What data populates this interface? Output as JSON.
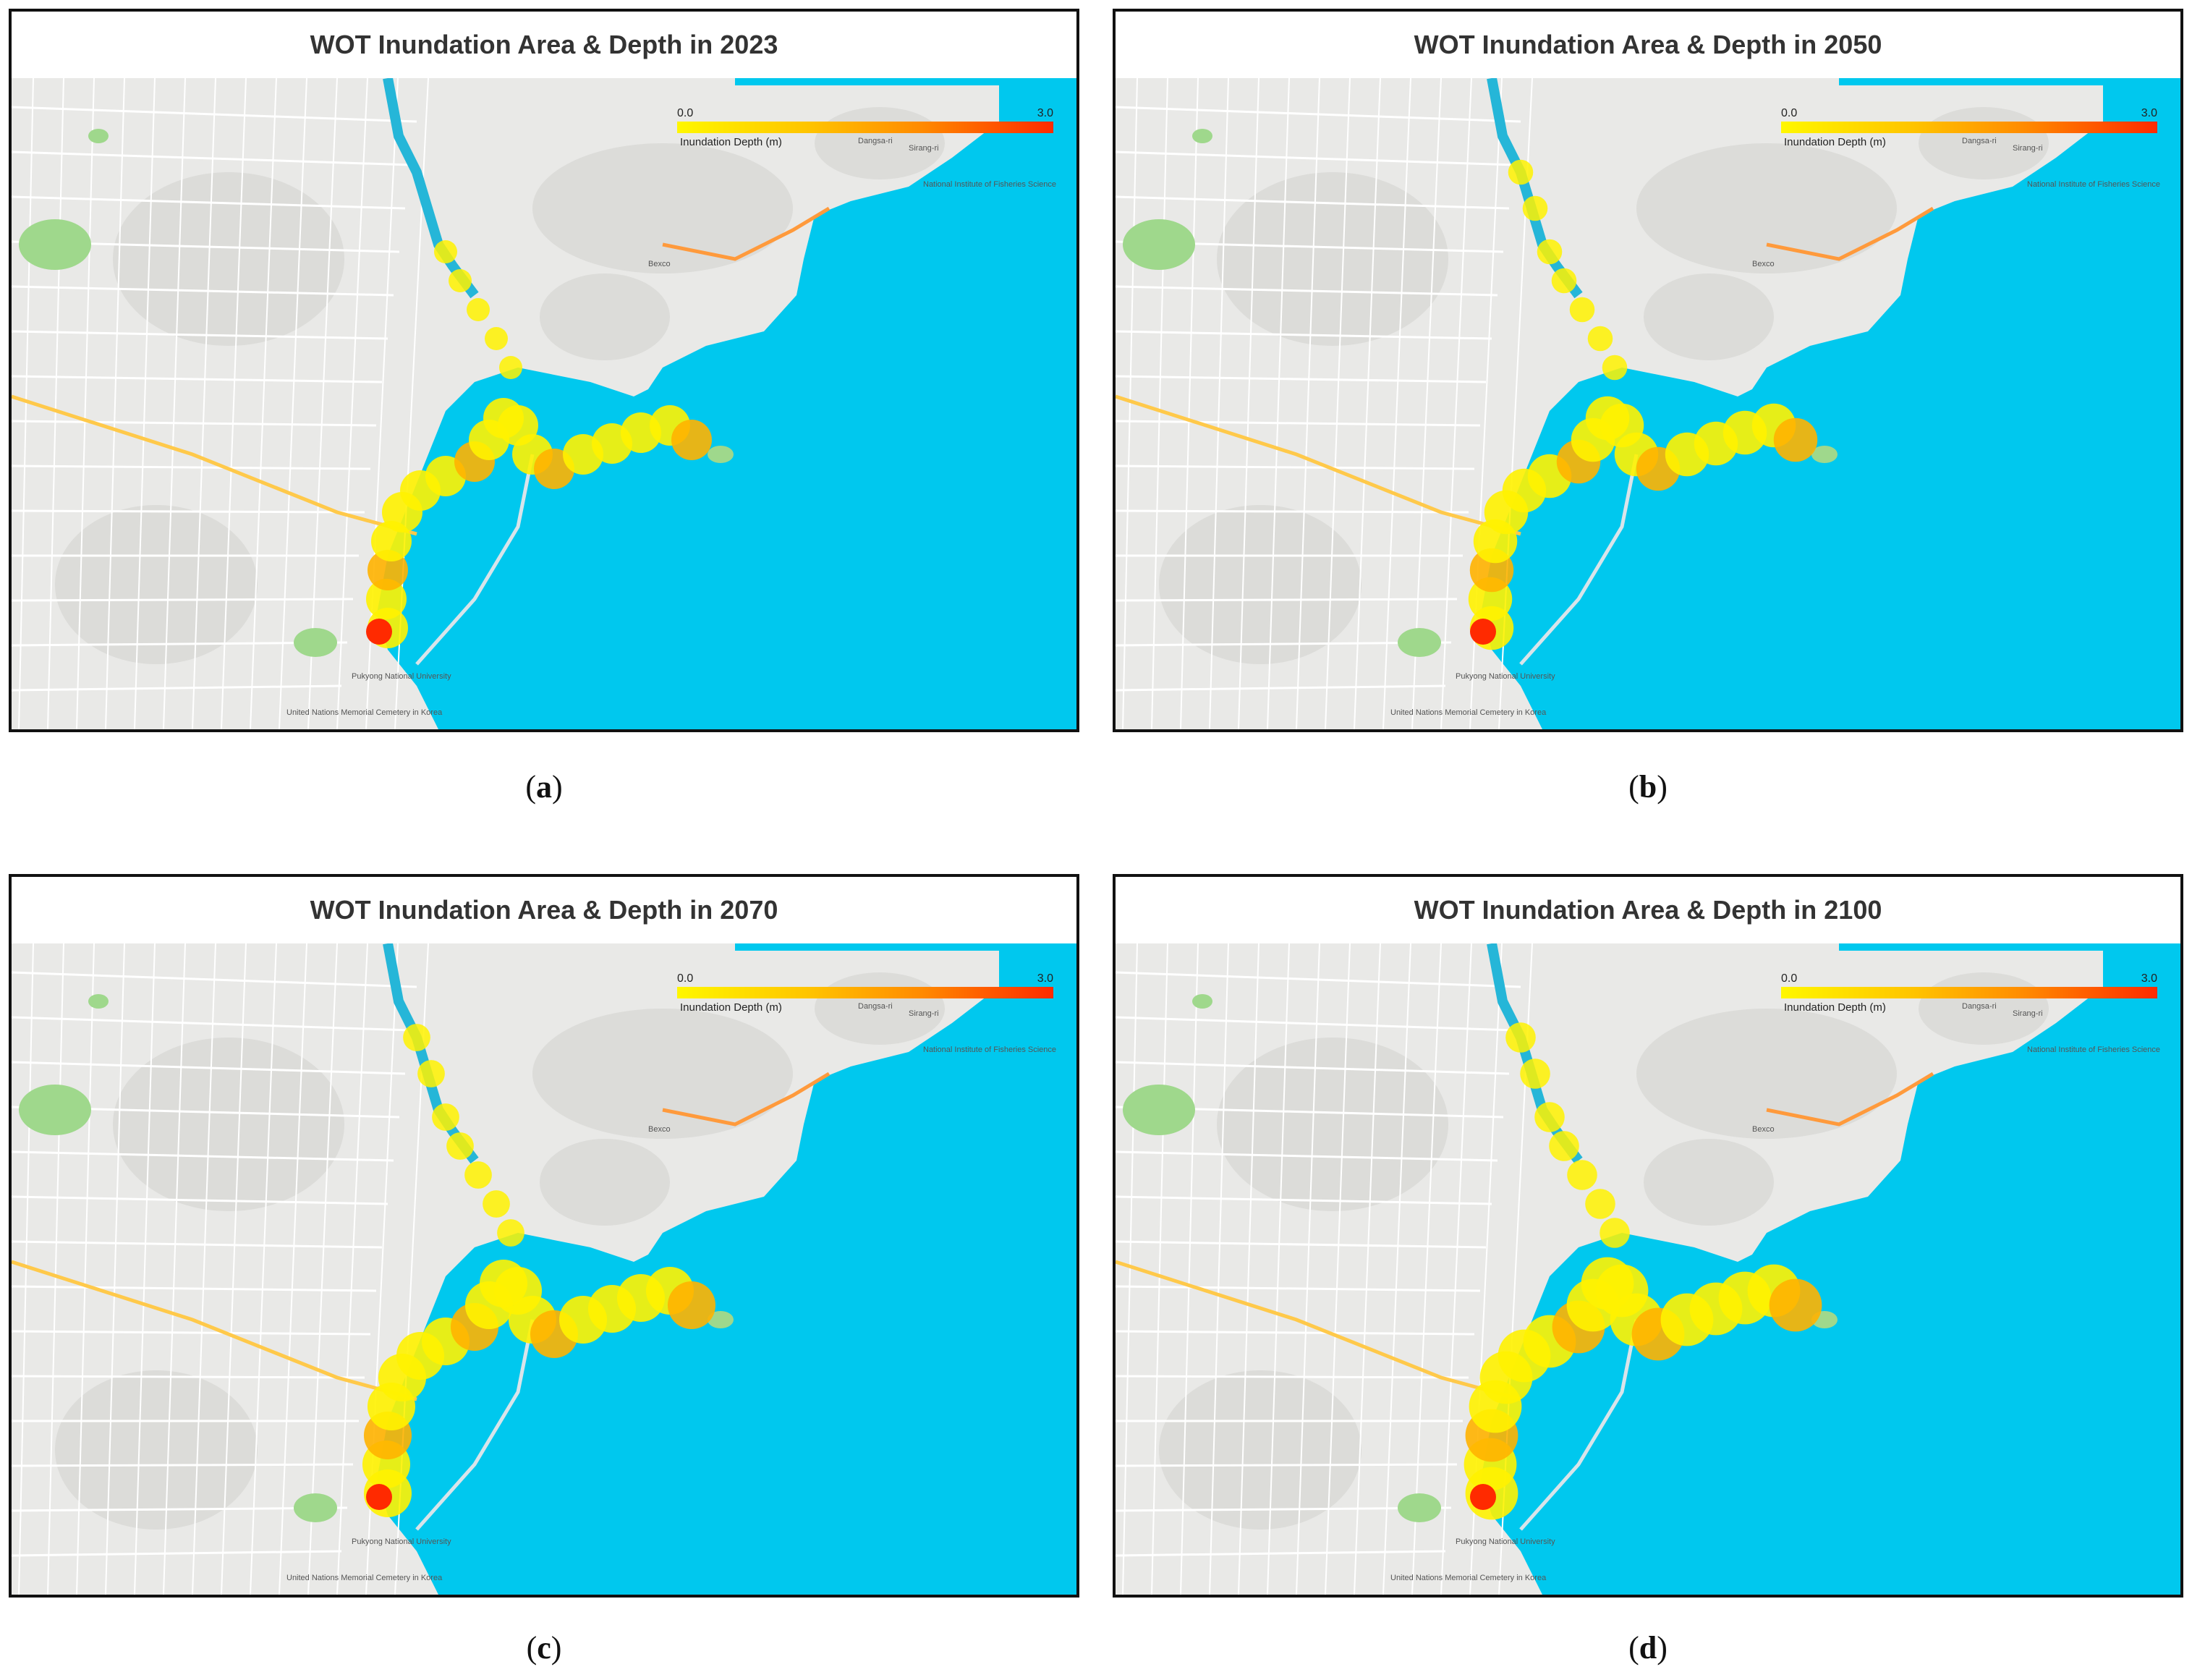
{
  "colors": {
    "sea": "#00c8ee",
    "land": "#e9e9e7",
    "river": "#25b6d8",
    "shallow": "#fff200",
    "mid": "#ffb300",
    "deep": "#ff2a00"
  },
  "legend": {
    "min": "0.0",
    "max": "3.0",
    "label": "Inundation Depth (m)"
  },
  "places": [
    "Dangsa-ri",
    "Sirang-ri",
    "Bexco",
    "Pukyong National University",
    "United Nations Memorial Cemetery in Korea",
    "National Institute of Fisheries Science"
  ],
  "panels": [
    {
      "id": "a",
      "title": "WOT Inundation Area & Depth in 2023",
      "caption_letter": "a",
      "extent": 1.0
    },
    {
      "id": "b",
      "title": "WOT Inundation Area & Depth in 2050",
      "caption_letter": "b",
      "extent": 1.08
    },
    {
      "id": "c",
      "title": "WOT Inundation Area & Depth in 2070",
      "caption_letter": "c",
      "extent": 1.18
    },
    {
      "id": "d",
      "title": "WOT Inundation Area & Depth in 2100",
      "caption_letter": "d",
      "extent": 1.3
    }
  ]
}
